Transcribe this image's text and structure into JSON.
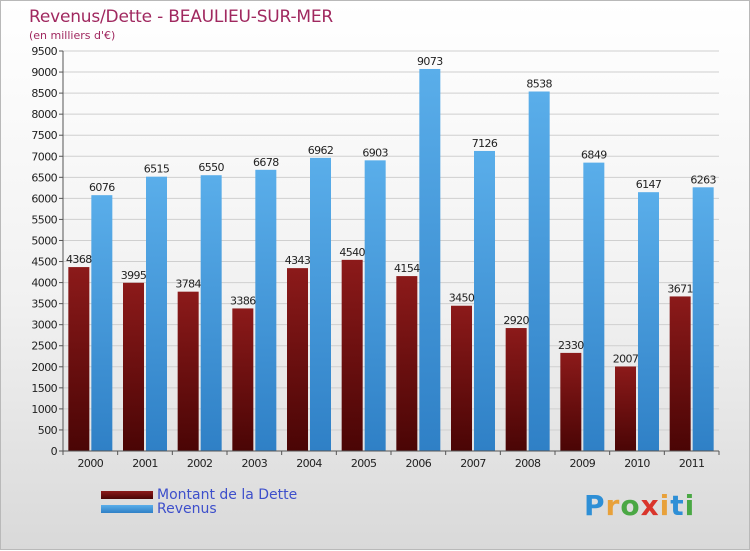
{
  "title": "Revenus/Dette - BEAULIEU-SUR-MER",
  "subtitle": "(en milliers d'€)",
  "logo": {
    "letters": [
      "P",
      "r",
      "o",
      "x",
      "i",
      "t",
      "i"
    ],
    "colors": [
      "#2e8fd6",
      "#e8a13a",
      "#4aa844",
      "#d9342b",
      "#e8a13a",
      "#2e8fd6",
      "#4aa844"
    ]
  },
  "chart_data": {
    "type": "bar",
    "categories": [
      "2000",
      "2001",
      "2002",
      "2003",
      "2004",
      "2005",
      "2006",
      "2007",
      "2008",
      "2009",
      "2010",
      "2011"
    ],
    "series": [
      {
        "name": "Montant de la Dette",
        "values": [
          4368,
          3995,
          3784,
          3386,
          4343,
          4540,
          4154,
          3450,
          2920,
          2330,
          2007,
          3671
        ],
        "labels": [
          "4368",
          "3995",
          "3784",
          "3386",
          "4343",
          "4540",
          "4154",
          "3450",
          "2920",
          "2330",
          "2007",
          "3671"
        ],
        "color": "#8c1a1a",
        "color_dark": "#4a0505"
      },
      {
        "name": "Revenus",
        "values": [
          6076,
          6515,
          6550,
          6678,
          6962,
          6903,
          9073,
          7126,
          8538,
          6849,
          6147,
          6263
        ],
        "labels": [
          "6076",
          "6515",
          "6550",
          "6678",
          "6962",
          "6903",
          "9073",
          "7126",
          "8538",
          "6849",
          "6147",
          "6263"
        ],
        "color": "#5aaeea",
        "color_dark": "#2f80c6"
      }
    ],
    "ylim": [
      0,
      9500
    ],
    "yticks": [
      "0",
      "500",
      "1000",
      "1500",
      "2000",
      "2500",
      "3000",
      "3500",
      "4000",
      "4500",
      "5000",
      "5500",
      "6000",
      "6500",
      "7000",
      "7500",
      "8000",
      "8500",
      "9000",
      "9500"
    ],
    "grid": true,
    "legend_position": "bottom-left"
  }
}
